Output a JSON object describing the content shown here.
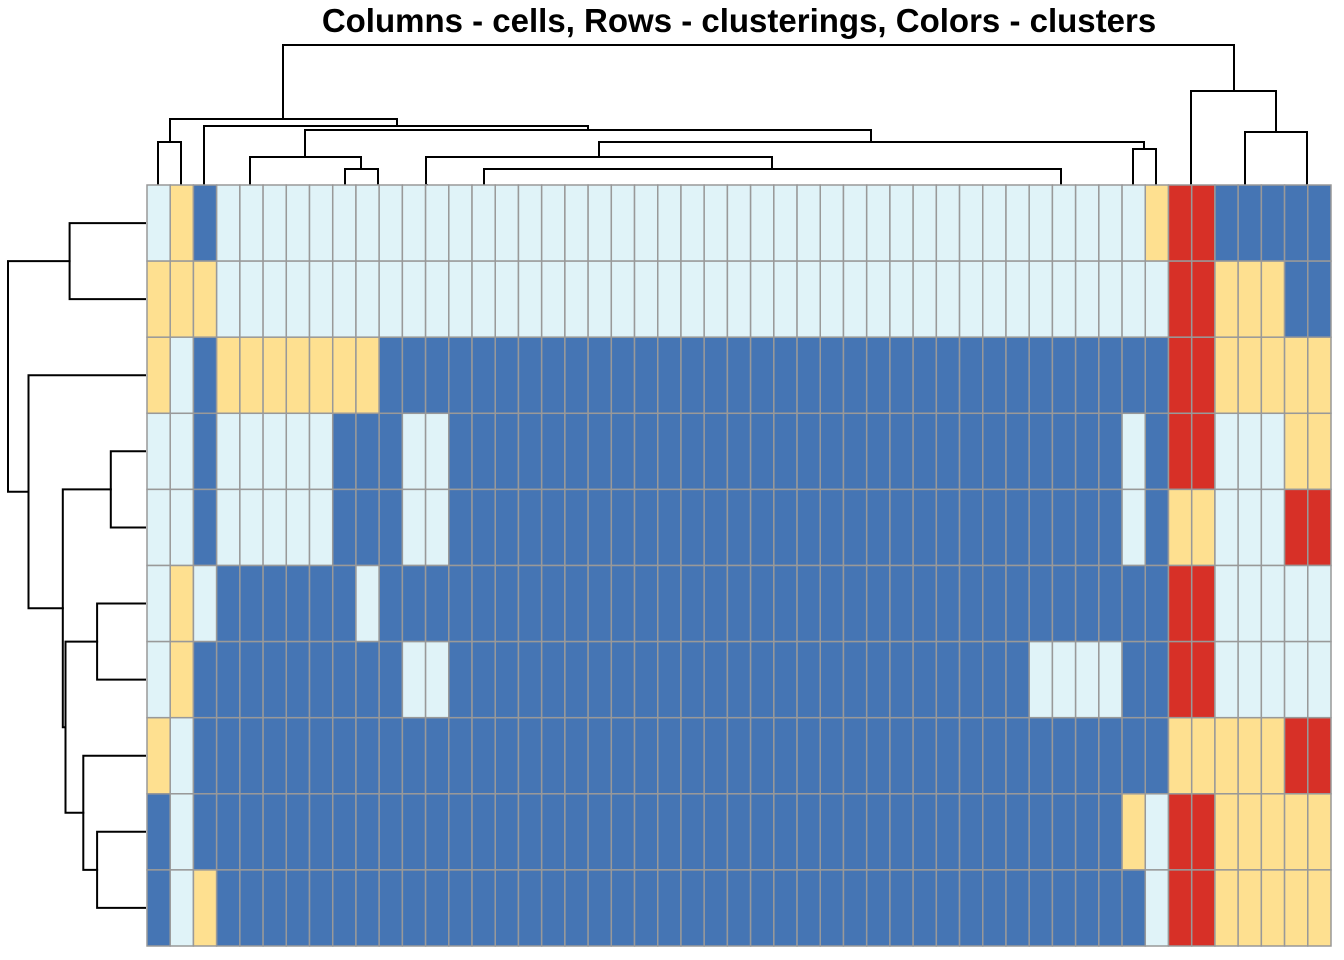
{
  "chart_data": {
    "type": "heatmap",
    "title": "Columns - cells, Rows - clusterings, Colors - clusters",
    "palette": {
      "1": "#4575B4",
      "2": "#E0F3F8",
      "3": "#FEE090",
      "4": "#D73027"
    },
    "cell_border_color": "#999999",
    "rows": [
      [
        2,
        3,
        1,
        2,
        2,
        2,
        2,
        2,
        2,
        2,
        2,
        2,
        2,
        2,
        2,
        2,
        2,
        2,
        2,
        2,
        2,
        2,
        2,
        2,
        2,
        2,
        2,
        2,
        2,
        2,
        2,
        2,
        2,
        2,
        2,
        2,
        2,
        2,
        2,
        2,
        2,
        2,
        2,
        3,
        4,
        4,
        1,
        1,
        1,
        1,
        1
      ],
      [
        3,
        3,
        3,
        2,
        2,
        2,
        2,
        2,
        2,
        2,
        2,
        2,
        2,
        2,
        2,
        2,
        2,
        2,
        2,
        2,
        2,
        2,
        2,
        2,
        2,
        2,
        2,
        2,
        2,
        2,
        2,
        2,
        2,
        2,
        2,
        2,
        2,
        2,
        2,
        2,
        2,
        2,
        2,
        2,
        4,
        4,
        3,
        3,
        3,
        1,
        1
      ],
      [
        3,
        2,
        1,
        3,
        3,
        3,
        3,
        3,
        3,
        3,
        1,
        1,
        1,
        1,
        1,
        1,
        1,
        1,
        1,
        1,
        1,
        1,
        1,
        1,
        1,
        1,
        1,
        1,
        1,
        1,
        1,
        1,
        1,
        1,
        1,
        1,
        1,
        1,
        1,
        1,
        1,
        1,
        1,
        1,
        4,
        4,
        3,
        3,
        3,
        3,
        3
      ],
      [
        2,
        2,
        1,
        2,
        2,
        2,
        2,
        2,
        1,
        1,
        1,
        2,
        2,
        1,
        1,
        1,
        1,
        1,
        1,
        1,
        1,
        1,
        1,
        1,
        1,
        1,
        1,
        1,
        1,
        1,
        1,
        1,
        1,
        1,
        1,
        1,
        1,
        1,
        1,
        1,
        1,
        1,
        2,
        1,
        4,
        4,
        2,
        2,
        2,
        3,
        3
      ],
      [
        2,
        2,
        1,
        2,
        2,
        2,
        2,
        2,
        1,
        1,
        1,
        2,
        2,
        1,
        1,
        1,
        1,
        1,
        1,
        1,
        1,
        1,
        1,
        1,
        1,
        1,
        1,
        1,
        1,
        1,
        1,
        1,
        1,
        1,
        1,
        1,
        1,
        1,
        1,
        1,
        1,
        1,
        2,
        1,
        3,
        3,
        2,
        2,
        2,
        4,
        4
      ],
      [
        2,
        3,
        2,
        1,
        1,
        1,
        1,
        1,
        1,
        2,
        1,
        1,
        1,
        1,
        1,
        1,
        1,
        1,
        1,
        1,
        1,
        1,
        1,
        1,
        1,
        1,
        1,
        1,
        1,
        1,
        1,
        1,
        1,
        1,
        1,
        1,
        1,
        1,
        1,
        1,
        1,
        1,
        1,
        1,
        4,
        4,
        2,
        2,
        2,
        2,
        2
      ],
      [
        2,
        3,
        1,
        1,
        1,
        1,
        1,
        1,
        1,
        1,
        1,
        2,
        2,
        1,
        1,
        1,
        1,
        1,
        1,
        1,
        1,
        1,
        1,
        1,
        1,
        1,
        1,
        1,
        1,
        1,
        1,
        1,
        1,
        1,
        1,
        1,
        1,
        1,
        2,
        2,
        2,
        2,
        1,
        1,
        4,
        4,
        2,
        2,
        2,
        2,
        2
      ],
      [
        3,
        2,
        1,
        1,
        1,
        1,
        1,
        1,
        1,
        1,
        1,
        1,
        1,
        1,
        1,
        1,
        1,
        1,
        1,
        1,
        1,
        1,
        1,
        1,
        1,
        1,
        1,
        1,
        1,
        1,
        1,
        1,
        1,
        1,
        1,
        1,
        1,
        1,
        1,
        1,
        1,
        1,
        1,
        1,
        3,
        3,
        3,
        3,
        3,
        4,
        4
      ],
      [
        1,
        2,
        1,
        1,
        1,
        1,
        1,
        1,
        1,
        1,
        1,
        1,
        1,
        1,
        1,
        1,
        1,
        1,
        1,
        1,
        1,
        1,
        1,
        1,
        1,
        1,
        1,
        1,
        1,
        1,
        1,
        1,
        1,
        1,
        1,
        1,
        1,
        1,
        1,
        1,
        1,
        1,
        3,
        2,
        4,
        4,
        3,
        3,
        3,
        3,
        3
      ],
      [
        1,
        2,
        3,
        1,
        1,
        1,
        1,
        1,
        1,
        1,
        1,
        1,
        1,
        1,
        1,
        1,
        1,
        1,
        1,
        1,
        1,
        1,
        1,
        1,
        1,
        1,
        1,
        1,
        1,
        1,
        1,
        1,
        1,
        1,
        1,
        1,
        1,
        1,
        1,
        1,
        1,
        1,
        1,
        2,
        4,
        4,
        3,
        3,
        3,
        3,
        3
      ]
    ],
    "row_dendrogram": [
      {
        "a": 0,
        "b": 1,
        "h": 0.55
      },
      {
        "a": 3,
        "b": 4,
        "h": 0.25
      },
      {
        "a": 5,
        "b": 6,
        "h": 0.35
      },
      {
        "a": 8,
        "b": 9,
        "h": 0.35
      },
      {
        "a": 7,
        "b": "n3",
        "h": 0.45
      },
      {
        "a": "n2",
        "b": "n4",
        "h": 0.58
      },
      {
        "a": "n1",
        "b": "n5",
        "h": 0.6
      },
      {
        "a": 2,
        "b": "n6",
        "h": 0.85
      },
      {
        "a": "n0",
        "b": "n7",
        "h": 1.0
      }
    ]
  }
}
